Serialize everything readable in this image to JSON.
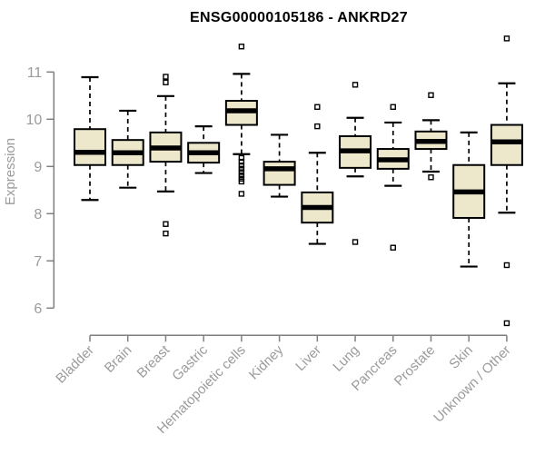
{
  "chart_data": {
    "type": "boxplot",
    "title": "ENSG00000105186 - ANKRD27",
    "ylabel": "Expression",
    "xlabel": "",
    "yticks": [
      6,
      7,
      8,
      9,
      10,
      11
    ],
    "ylim": [
      5.5,
      11.9
    ],
    "grid": false,
    "legend": "none",
    "categories": [
      "Bladder",
      "Brain",
      "Breast",
      "Gastric",
      "Hematopoietic cells",
      "Kidney",
      "Liver",
      "Lung",
      "Pancreas",
      "Prostate",
      "Skin",
      "Unknown / Other"
    ],
    "series": [
      {
        "name": "Bladder",
        "low": 8.29,
        "q1": 9.03,
        "median": 9.3,
        "q3": 9.79,
        "high": 10.89,
        "outliers": []
      },
      {
        "name": "Brain",
        "low": 8.55,
        "q1": 9.03,
        "median": 9.29,
        "q3": 9.56,
        "high": 10.18,
        "outliers": []
      },
      {
        "name": "Breast",
        "low": 8.47,
        "q1": 9.1,
        "median": 9.39,
        "q3": 9.72,
        "high": 10.49,
        "outliers": [
          10.9,
          10.78,
          7.78,
          7.58
        ]
      },
      {
        "name": "Gastric",
        "low": 8.86,
        "q1": 9.08,
        "median": 9.29,
        "q3": 9.5,
        "high": 9.85,
        "outliers": []
      },
      {
        "name": "Hematopoietic cells",
        "low": 9.26,
        "q1": 9.88,
        "median": 10.18,
        "q3": 10.39,
        "high": 10.96,
        "outliers": [
          11.54,
          9.18,
          9.1,
          9.02,
          8.95,
          8.88,
          8.81,
          8.74,
          8.68,
          8.42
        ]
      },
      {
        "name": "Kidney",
        "low": 8.36,
        "q1": 8.61,
        "median": 8.95,
        "q3": 9.1,
        "high": 9.67,
        "outliers": []
      },
      {
        "name": "Liver",
        "low": 7.36,
        "q1": 7.81,
        "median": 8.13,
        "q3": 8.45,
        "high": 9.29,
        "outliers": [
          10.26,
          9.85
        ]
      },
      {
        "name": "Lung",
        "low": 8.79,
        "q1": 8.97,
        "median": 9.33,
        "q3": 9.64,
        "high": 10.03,
        "outliers": [
          10.73,
          7.4
        ]
      },
      {
        "name": "Pancreas",
        "low": 8.59,
        "q1": 8.95,
        "median": 9.14,
        "q3": 9.37,
        "high": 9.93,
        "outliers": [
          10.26,
          7.28
        ]
      },
      {
        "name": "Prostate",
        "low": 8.89,
        "q1": 9.37,
        "median": 9.53,
        "q3": 9.74,
        "high": 9.98,
        "outliers": [
          10.51,
          8.77
        ]
      },
      {
        "name": "Skin",
        "low": 6.88,
        "q1": 7.91,
        "median": 8.46,
        "q3": 9.03,
        "high": 9.72,
        "outliers": []
      },
      {
        "name": "Unknown / Other",
        "low": 8.02,
        "q1": 9.03,
        "median": 9.52,
        "q3": 9.88,
        "high": 10.76,
        "outliers": [
          11.71,
          6.91,
          5.68
        ]
      }
    ],
    "colors": {
      "box_fill": "#EDE8CB",
      "box_stroke": "#000000",
      "axis": "#7F7F7F",
      "tick_label": "#9B9B9B",
      "title": "#000000"
    }
  }
}
